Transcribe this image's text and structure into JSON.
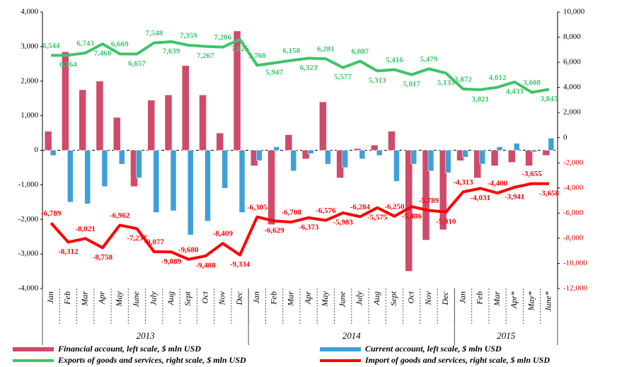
{
  "chart_data": {
    "type": "bar-line",
    "categories": [
      "Jan",
      "Feb",
      "Mar",
      "Apr",
      "May",
      "June",
      "July",
      "Aug",
      "Sept",
      "Oct",
      "Nov",
      "Dec",
      "Jan",
      "Feb",
      "Mar",
      "Apr",
      "May",
      "June",
      "July",
      "Aug",
      "Sept",
      "Oct",
      "Nov",
      "Dec",
      "Jan",
      "Feb",
      "Mar",
      "Apr*",
      "May*",
      "June*"
    ],
    "years": [
      "2013",
      "2014",
      "2015"
    ],
    "ylim": [
      -4000,
      4000
    ],
    "yticks": [
      {
        "value": 4000,
        "label": "4,000"
      },
      {
        "value": 3000,
        "label": "3,000"
      },
      {
        "value": 2000,
        "label": "2,000"
      },
      {
        "value": 1000,
        "label": "1,000"
      },
      0,
      {
        "value": -1000,
        "label": "-1,000"
      },
      {
        "value": -2000,
        "label": "-2,000"
      },
      {
        "value": -3000,
        "label": "-3,000"
      },
      {
        "value": -4000,
        "label": "-4,000"
      }
    ],
    "y2lim": [
      -12000,
      10000
    ],
    "y2ticks": [
      {
        "value": 10000,
        "label": "10,000"
      },
      {
        "value": 8000,
        "label": "8,000"
      },
      {
        "value": 6000,
        "label": "6,000"
      },
      {
        "value": 4000,
        "label": "4,000"
      },
      {
        "value": 2000,
        "label": "2,000"
      },
      0,
      {
        "value": -2000,
        "label": "-2,000"
      },
      {
        "value": -4000,
        "label": "-4,000"
      },
      {
        "value": -6000,
        "label": "-6,000"
      },
      {
        "value": -8000,
        "label": "-8,000"
      },
      {
        "value": -10000,
        "label": "-10,000"
      },
      {
        "value": -12000,
        "label": "-12,000"
      }
    ],
    "series": [
      {
        "name": "Financial account, left scale, $ mln USD",
        "color": "#d04a6a",
        "kind": "bar",
        "values": [
          550,
          2850,
          1750,
          2000,
          950,
          -1050,
          1450,
          1600,
          2450,
          1600,
          500,
          3450,
          -450,
          -2150,
          450,
          -250,
          1400,
          -800,
          50,
          150,
          550,
          -3500,
          -2600,
          -2300,
          -300,
          -800,
          -450,
          -350,
          -450,
          -150
        ]
      },
      {
        "name": "Current account, left scale, $ mln USD",
        "color": "#3fa0d8",
        "kind": "bar",
        "values": [
          -150,
          -1500,
          -1550,
          -1050,
          -400,
          -800,
          -1800,
          -1750,
          -2450,
          -2050,
          -1100,
          -1800,
          -300,
          100,
          -600,
          -100,
          -400,
          -500,
          -250,
          -150,
          -900,
          -400,
          -600,
          -650,
          -200,
          -400,
          100,
          200,
          -50,
          350
        ]
      },
      {
        "name": "Exports of goods and services, right scale, $ mln USD",
        "color": "#3cc46a",
        "kind": "line",
        "axis": "y2",
        "values": [
          6544,
          6564,
          6743,
          7460,
          6669,
          6657,
          7548,
          7639,
          7359,
          7267,
          7206,
          7826,
          5760,
          5947,
          6150,
          6323,
          6281,
          5577,
          6087,
          5313,
          5416,
          5017,
          5479,
          5135,
          3872,
          3821,
          4012,
          4433,
          3608,
          3845
        ],
        "value_labels": [
          "6,544",
          "6,564",
          "6,743",
          "7,460",
          "6,669",
          "6,657",
          "7,548",
          "7,639",
          "7,359",
          "7,267",
          "7,206",
          "7,826",
          "5,760",
          "5,947",
          "6,150",
          "6,323",
          "6,281",
          "5,577",
          "6,087",
          "5,313",
          "5,416",
          "5,017",
          "5,479",
          "5,135",
          "3,872",
          "3,821",
          "4,012",
          "4,433",
          "3,608",
          "3,845"
        ]
      },
      {
        "name": "Import of goods and services, right scale, $ mln USD",
        "color": "#ff0000",
        "kind": "line",
        "axis": "y2",
        "values": [
          -6789,
          -8312,
          -8021,
          -8758,
          -6962,
          -7237,
          -9077,
          -9089,
          -9680,
          -9408,
          -8409,
          -9334,
          -6305,
          -6629,
          -6708,
          -6373,
          -6576,
          -5983,
          -6284,
          -5575,
          -6250,
          -5486,
          -5789,
          -5910,
          -4313,
          -4031,
          -4400,
          -3941,
          -3655,
          -3658
        ],
        "value_labels": [
          "-6,789",
          "-8,312",
          "-8,021",
          "-8,758",
          "-6,962",
          "-7,237",
          "-9,077",
          "-9,089",
          "-9,680",
          "-9,408",
          "-8,409",
          "-9,334",
          "-6,305",
          "-6,629",
          "-6,708",
          "-6,373",
          "-6,576",
          "-5,983",
          "-6,284",
          "-5,575",
          "-6,250",
          "-5,486",
          "-5,789",
          "-5,910",
          "-4,313",
          "-4,031",
          "-4,400",
          "-3,941",
          "-3,655",
          "-3,658"
        ]
      }
    ]
  }
}
